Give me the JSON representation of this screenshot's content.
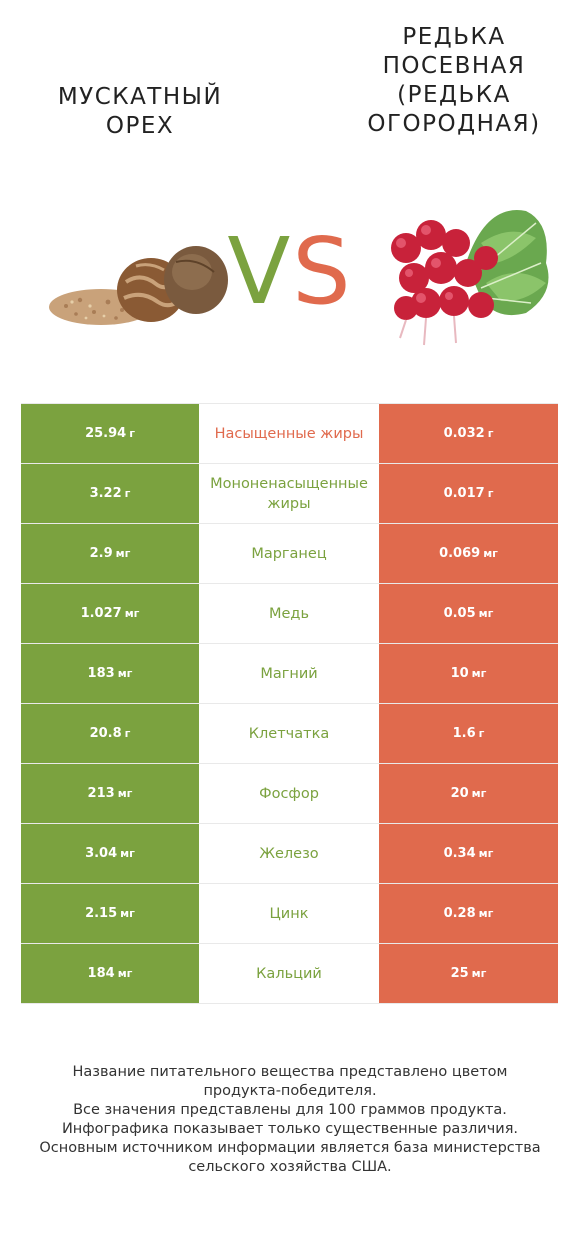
{
  "header": {
    "left_title": "МУСКАТНЫЙ ОРЕХ",
    "right_title": "РЕДЬКА ПОСЕВНАЯ (РЕДЬКА ОГОРОДНАЯ)",
    "vs_v": "V",
    "vs_s": "S"
  },
  "colors": {
    "left": "#7ba23f",
    "right": "#e06a4d"
  },
  "rows": [
    {
      "nutrient": "Насыщенные жиры",
      "left_value": "25.94",
      "left_unit": "г",
      "right_value": "0.032",
      "right_unit": "г",
      "winner": "right"
    },
    {
      "nutrient": "Мононенасыщенные жиры",
      "left_value": "3.22",
      "left_unit": "г",
      "right_value": "0.017",
      "right_unit": "г",
      "winner": "left"
    },
    {
      "nutrient": "Марганец",
      "left_value": "2.9",
      "left_unit": "мг",
      "right_value": "0.069",
      "right_unit": "мг",
      "winner": "left"
    },
    {
      "nutrient": "Медь",
      "left_value": "1.027",
      "left_unit": "мг",
      "right_value": "0.05",
      "right_unit": "мг",
      "winner": "left"
    },
    {
      "nutrient": "Магний",
      "left_value": "183",
      "left_unit": "мг",
      "right_value": "10",
      "right_unit": "мг",
      "winner": "left"
    },
    {
      "nutrient": "Клетчатка",
      "left_value": "20.8",
      "left_unit": "г",
      "right_value": "1.6",
      "right_unit": "г",
      "winner": "left"
    },
    {
      "nutrient": "Фосфор",
      "left_value": "213",
      "left_unit": "мг",
      "right_value": "20",
      "right_unit": "мг",
      "winner": "left"
    },
    {
      "nutrient": "Железо",
      "left_value": "3.04",
      "left_unit": "мг",
      "right_value": "0.34",
      "right_unit": "мг",
      "winner": "left"
    },
    {
      "nutrient": "Цинк",
      "left_value": "2.15",
      "left_unit": "мг",
      "right_value": "0.28",
      "right_unit": "мг",
      "winner": "left"
    },
    {
      "nutrient": "Кальций",
      "left_value": "184",
      "left_unit": "мг",
      "right_value": "25",
      "right_unit": "мг",
      "winner": "left"
    }
  ],
  "footer": {
    "lines": [
      "Название питательного вещества представлено цветом",
      "продукта-победителя.",
      "Все значения представлены для 100 граммов продукта.",
      "Инфографика показывает только существенные различия.",
      "Основным источником информации является база министерства",
      "сельского хозяйства США."
    ]
  }
}
